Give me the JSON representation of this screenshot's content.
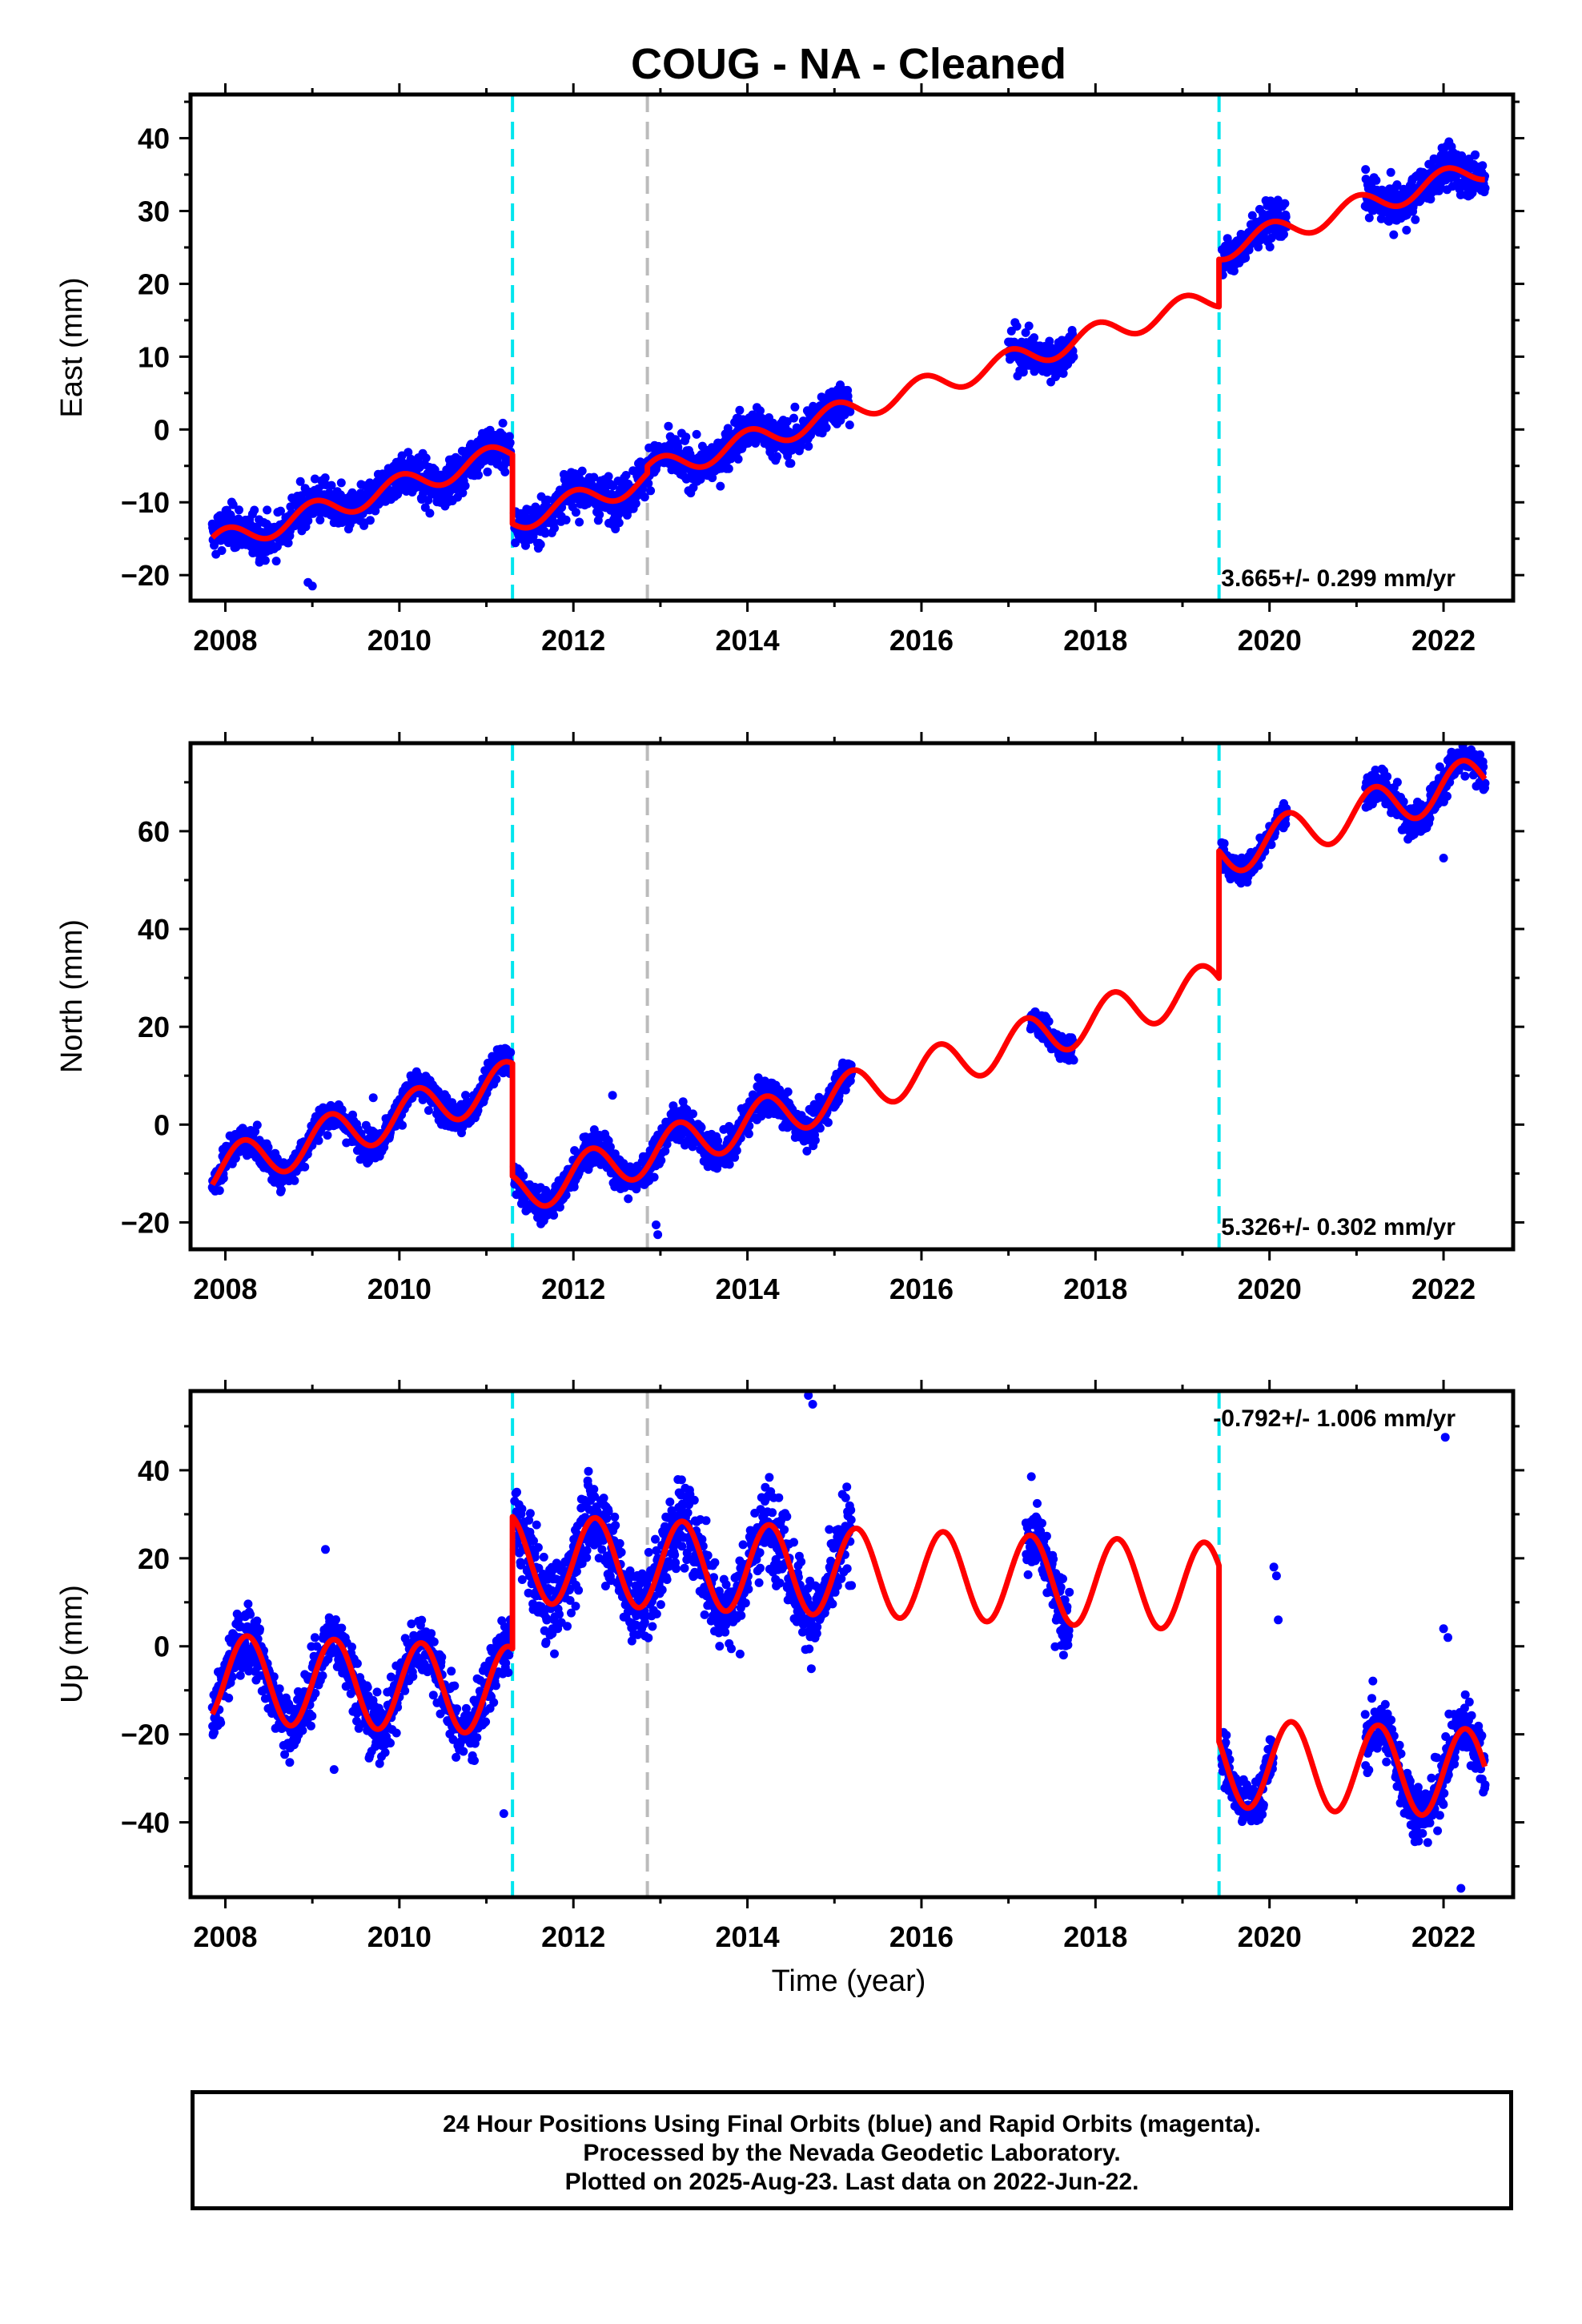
{
  "title": "COUG  - NA - Cleaned",
  "xlabel": "Time (year)",
  "colors": {
    "data": "#0000ff",
    "model": "#ff0000",
    "offset_equipment": "#00e5ee",
    "offset_other": "#bbbbbb"
  },
  "chart_data": [
    {
      "type": "scatter",
      "component": "East",
      "ylabel": "East (mm)",
      "xlim": [
        2007.6,
        2022.8
      ],
      "ylim": [
        -23.5,
        46
      ],
      "xticks": [
        2008,
        2010,
        2012,
        2014,
        2016,
        2018,
        2020,
        2022
      ],
      "xtick_labels": [
        "2008",
        "2010",
        "2012",
        "2014",
        "2016",
        "2018",
        "2020",
        "2022"
      ],
      "yticks": [
        40,
        30,
        20,
        10,
        0,
        -10,
        -20
      ],
      "ytick_labels": [
        "40",
        "30",
        "20",
        "10",
        "0",
        "−10",
        "−20"
      ],
      "rate": "3.665+/- 0.299 mm/yr",
      "rate_pos": "bottom-right",
      "offsets": [
        {
          "x": 2011.3,
          "kind": "equipment"
        },
        {
          "x": 2012.85,
          "kind": "other"
        },
        {
          "x": 2019.42,
          "kind": "equipment"
        }
      ],
      "model": {
        "trend": 3.665,
        "ref_year": 2015,
        "ref_value": 2.0,
        "annual_amp": 1.6,
        "annual_phase": 1.5,
        "jumps": [
          {
            "x": 2011.3,
            "dy": -9.5
          },
          {
            "x": 2012.85,
            "dy": 1.0
          },
          {
            "x": 2019.42,
            "dy": 6.5
          }
        ]
      },
      "data_spans": [
        [
          2007.85,
          2011.28,
          2.0
        ],
        [
          2011.32,
          2015.18,
          2.0
        ],
        [
          2017.0,
          2017.75,
          2.0
        ],
        [
          2019.45,
          2020.2,
          1.8
        ],
        [
          2021.1,
          2022.48,
          2.0
        ]
      ],
      "outliers": [
        [
          2009.0,
          -21.5
        ],
        [
          2008.95,
          -21.0
        ],
        [
          2010.35,
          -11.5
        ]
      ]
    },
    {
      "type": "scatter",
      "component": "North",
      "ylabel": "North (mm)",
      "xlim": [
        2007.6,
        2022.8
      ],
      "ylim": [
        -25.5,
        78
      ],
      "xticks": [
        2008,
        2010,
        2012,
        2014,
        2016,
        2018,
        2020,
        2022
      ],
      "xtick_labels": [
        "2008",
        "2010",
        "2012",
        "2014",
        "2016",
        "2018",
        "2020",
        "2022"
      ],
      "yticks": [
        60,
        40,
        20,
        0,
        -20
      ],
      "ytick_labels": [
        "60",
        "40",
        "20",
        "0",
        "−20"
      ],
      "rate": "5.326+/- 0.302 mm/yr",
      "rate_pos": "bottom-right",
      "offsets": [
        {
          "x": 2011.3,
          "kind": "equipment"
        },
        {
          "x": 2012.85,
          "kind": "other"
        },
        {
          "x": 2019.42,
          "kind": "equipment"
        }
      ],
      "model": {
        "trend": 5.326,
        "ref_year": 2015,
        "ref_value": 5.5,
        "annual_amp": 4.5,
        "annual_phase": 0.3,
        "jumps": [
          {
            "x": 2011.3,
            "dy": -23.0
          },
          {
            "x": 2012.85,
            "dy": 0.0
          },
          {
            "x": 2019.42,
            "dy": 26.0
          }
        ]
      },
      "data_spans": [
        [
          2007.85,
          2011.28,
          2.2
        ],
        [
          2011.32,
          2015.2,
          2.5
        ],
        [
          2017.25,
          2017.75,
          2.0
        ],
        [
          2019.45,
          2020.2,
          2.0
        ],
        [
          2021.1,
          2022.48,
          2.5
        ]
      ],
      "outliers": [
        [
          2009.7,
          5.5
        ],
        [
          2012.45,
          6.0
        ],
        [
          2012.95,
          -20.5
        ],
        [
          2012.97,
          -22.5
        ],
        [
          2022.0,
          54.5
        ]
      ]
    },
    {
      "type": "scatter",
      "component": "Up",
      "ylabel": "Up (mm)",
      "xlim": [
        2007.6,
        2022.8
      ],
      "ylim": [
        -57,
        58
      ],
      "xticks": [
        2008,
        2010,
        2012,
        2014,
        2016,
        2018,
        2020,
        2022
      ],
      "xtick_labels": [
        "2008",
        "2010",
        "2012",
        "2014",
        "2016",
        "2018",
        "2020",
        "2022"
      ],
      "yticks": [
        40,
        20,
        0,
        -20,
        -40
      ],
      "ytick_labels": [
        "40",
        "20",
        "0",
        "−20",
        "−40"
      ],
      "rate": "-0.792+/- 1.006 mm/yr",
      "rate_pos": "top-right",
      "offsets": [
        {
          "x": 2011.3,
          "kind": "equipment"
        },
        {
          "x": 2012.85,
          "kind": "other"
        },
        {
          "x": 2019.42,
          "kind": "equipment"
        }
      ],
      "model": {
        "trend": -0.792,
        "ref_year": 2015,
        "ref_value": 17.0,
        "annual_amp": 10.0,
        "annual_phase": 0.0,
        "jumps": [
          {
            "x": 2011.3,
            "dy": 30.0
          },
          {
            "x": 2012.85,
            "dy": 0.0
          },
          {
            "x": 2019.42,
            "dy": -40.0
          }
        ]
      },
      "data_spans": [
        [
          2007.85,
          2011.28,
          5.0
        ],
        [
          2011.32,
          2015.2,
          6.5
        ],
        [
          2017.2,
          2017.7,
          6.0
        ],
        [
          2019.45,
          2020.05,
          4.0
        ],
        [
          2021.1,
          2022.48,
          5.0
        ]
      ],
      "outliers": [
        [
          2009.15,
          22.0
        ],
        [
          2009.25,
          -28.0
        ],
        [
          2011.2,
          -38.0
        ],
        [
          2014.7,
          57.0
        ],
        [
          2014.75,
          55.0
        ],
        [
          2020.05,
          18.0
        ],
        [
          2020.08,
          16.0
        ],
        [
          2020.1,
          6.0
        ],
        [
          2022.02,
          47.5
        ],
        [
          2022.0,
          4.0
        ],
        [
          2022.05,
          2.0
        ],
        [
          2022.25,
          -11.0
        ],
        [
          2021.6,
          -30.0
        ],
        [
          2022.2,
          -55.0
        ]
      ]
    }
  ],
  "footer": {
    "line1": "24 Hour Positions Using Final Orbits (blue) and Rapid Orbits (magenta).",
    "line2": "Processed by the Nevada Geodetic Laboratory.",
    "line3": "Plotted on 2025-Aug-23. Last data on 2022-Jun-22."
  }
}
